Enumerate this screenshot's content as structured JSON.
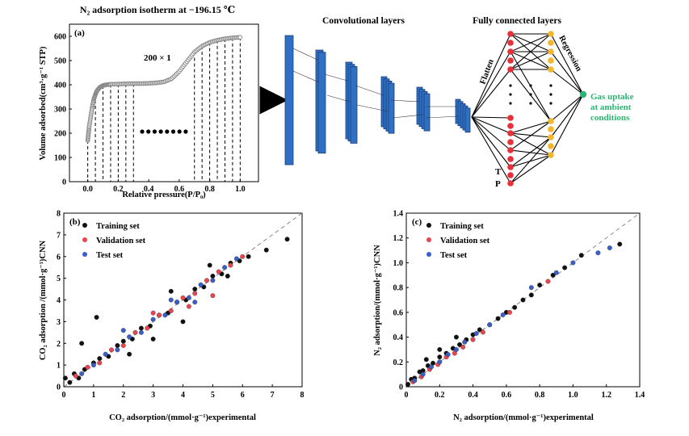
{
  "colors": {
    "training": "#111111",
    "validation": "#e8454f",
    "test": "#3a5fc8",
    "cnn_block": "#2f6fc4",
    "node_red": "#e8303a",
    "node_yellow": "#f2b631",
    "output_node": "#2bb673",
    "output_text": "#2bb673",
    "isotherm": "#8a8a8a",
    "diagonal": "#888888"
  },
  "chart_data": [
    {
      "id": "a",
      "type": "line",
      "panel_label": "(a)",
      "title": "N₂ adsorption isotherm at −196.15 ℃",
      "xlabel": "Relative pressure(P/P₀)",
      "ylabel": "Volume adsorbed(cm³·g⁻¹ STP)",
      "xlim": [
        -0.12,
        1.12
      ],
      "ylim": [
        0,
        650
      ],
      "xticks": [
        "0.0",
        "0.2",
        "0.4",
        "0.6",
        "0.8",
        "1.0"
      ],
      "yticks": [
        "0",
        "100",
        "200",
        "300",
        "400",
        "500",
        "600"
      ],
      "annotation": "200 × 1",
      "series": [
        {
          "x": [
            0.0,
            0.005,
            0.01,
            0.02,
            0.03,
            0.04,
            0.05,
            0.06,
            0.08,
            0.1,
            0.12,
            0.15,
            0.2,
            0.25,
            0.3,
            0.35,
            0.4,
            0.45,
            0.5,
            0.55,
            0.6,
            0.65,
            0.7,
            0.75,
            0.8,
            0.85,
            0.9,
            0.95,
            1.0
          ],
          "y": [
            170,
            200,
            230,
            270,
            310,
            340,
            360,
            375,
            390,
            397,
            400,
            402,
            403,
            404,
            405,
            405,
            406,
            408,
            412,
            425,
            455,
            495,
            535,
            560,
            575,
            584,
            590,
            594,
            596
          ]
        }
      ],
      "sample_lines_x": [
        0.0,
        0.05,
        0.1,
        0.15,
        0.2,
        0.25,
        0.3,
        0.7,
        0.75,
        0.8,
        0.85,
        0.9,
        0.95,
        1.0
      ]
    },
    {
      "id": "b",
      "type": "scatter",
      "panel_label": "(b)",
      "xlabel": "CO₂ adsorption/(mmol·g⁻¹)experimental",
      "ylabel": "CO₂ adsorption /(mmol·g⁻¹)CNN",
      "xlim": [
        0,
        8
      ],
      "ylim": [
        0,
        8
      ],
      "xticks": [
        "0",
        "1",
        "2",
        "3",
        "4",
        "5",
        "6",
        "7",
        "8"
      ],
      "yticks": [
        "0",
        "1",
        "2",
        "3",
        "4",
        "5",
        "6",
        "7",
        "8"
      ],
      "legend_position": "top-left",
      "series": [
        {
          "name": "Training set",
          "color_key": "training",
          "x": [
            0.05,
            0.2,
            0.35,
            0.5,
            0.7,
            1.0,
            1.2,
            1.5,
            1.8,
            2.0,
            2.3,
            2.6,
            2.9,
            3.2,
            3.5,
            3.8,
            4.1,
            4.4,
            4.7,
            5.0,
            5.3,
            5.6,
            5.9,
            6.2,
            6.8,
            7.5,
            0.6,
            1.1,
            3.0,
            4.0,
            2.2,
            3.6,
            4.9,
            5.5
          ],
          "y": [
            0.4,
            0.2,
            0.6,
            0.4,
            0.8,
            1.1,
            1.3,
            1.4,
            1.9,
            2.1,
            2.2,
            2.7,
            2.8,
            3.3,
            3.4,
            3.9,
            4.0,
            4.5,
            4.6,
            5.1,
            5.2,
            5.7,
            5.8,
            6.0,
            6.3,
            6.8,
            2.0,
            3.2,
            2.2,
            3.0,
            1.5,
            4.4,
            5.6,
            5.1
          ]
        },
        {
          "name": "Validation set",
          "color_key": "validation",
          "x": [
            0.4,
            0.8,
            1.2,
            1.6,
            2.0,
            2.4,
            2.8,
            3.2,
            3.6,
            4.0,
            4.4,
            4.8,
            5.2,
            5.6,
            6.0,
            3.0,
            4.2,
            5.0
          ],
          "y": [
            0.5,
            0.9,
            1.1,
            1.7,
            1.9,
            2.5,
            2.7,
            3.3,
            3.5,
            4.1,
            4.3,
            4.9,
            5.3,
            5.6,
            6.0,
            3.4,
            3.7,
            4.2
          ]
        },
        {
          "name": "Test set",
          "color_key": "test",
          "x": [
            0.6,
            1.0,
            1.4,
            1.8,
            2.2,
            2.6,
            3.0,
            3.4,
            3.8,
            4.2,
            4.6,
            5.0,
            5.4,
            5.8,
            2.0,
            3.6,
            4.4
          ],
          "y": [
            0.6,
            1.0,
            1.5,
            1.7,
            2.3,
            2.5,
            3.1,
            3.3,
            3.9,
            4.1,
            4.7,
            4.9,
            5.5,
            5.9,
            2.6,
            4.0,
            3.9
          ]
        }
      ]
    },
    {
      "id": "c",
      "type": "scatter",
      "panel_label": "(c)",
      "xlabel": "N₂ adsorption/(mmol·g⁻¹)experimental",
      "ylabel": "N₂ adsorption/(mmol·g⁻¹)CNN",
      "xlim": [
        0,
        1.4
      ],
      "ylim": [
        0,
        1.4
      ],
      "xticks": [
        "0",
        "0.2",
        "0.4",
        "0.6",
        "0.8",
        "1.0",
        "1.2",
        "1.4"
      ],
      "yticks": [
        "0",
        "0.2",
        "0.4",
        "0.6",
        "0.8",
        "1.0",
        "1.2",
        "1.4"
      ],
      "legend_position": "top-left",
      "series": [
        {
          "name": "Training set",
          "color_key": "training",
          "x": [
            0.01,
            0.03,
            0.05,
            0.08,
            0.1,
            0.13,
            0.16,
            0.2,
            0.24,
            0.28,
            0.32,
            0.36,
            0.4,
            0.44,
            0.5,
            0.55,
            0.6,
            0.65,
            0.7,
            0.75,
            0.8,
            0.88,
            0.95,
            1.05,
            1.28,
            0.12,
            0.2,
            0.3
          ],
          "y": [
            0.02,
            0.06,
            0.07,
            0.12,
            0.13,
            0.17,
            0.19,
            0.24,
            0.27,
            0.31,
            0.34,
            0.38,
            0.42,
            0.46,
            0.5,
            0.55,
            0.6,
            0.64,
            0.7,
            0.74,
            0.82,
            0.9,
            0.96,
            1.06,
            1.15,
            0.22,
            0.3,
            0.4
          ]
        },
        {
          "name": "Validation set",
          "color_key": "validation",
          "x": [
            0.04,
            0.09,
            0.14,
            0.19,
            0.24,
            0.29,
            0.34,
            0.4,
            0.46,
            0.62,
            0.85
          ],
          "y": [
            0.04,
            0.08,
            0.14,
            0.18,
            0.24,
            0.27,
            0.32,
            0.38,
            0.44,
            0.6,
            0.85
          ]
        },
        {
          "name": "Test set",
          "color_key": "test",
          "x": [
            0.05,
            0.1,
            0.15,
            0.2,
            0.25,
            0.3,
            0.35,
            0.42,
            0.5,
            0.58,
            0.75,
            0.9,
            1.0,
            1.15,
            1.22
          ],
          "y": [
            0.05,
            0.1,
            0.16,
            0.2,
            0.26,
            0.3,
            0.36,
            0.43,
            0.5,
            0.58,
            0.8,
            0.92,
            1.0,
            1.08,
            1.12
          ]
        }
      ]
    }
  ],
  "diagram": {
    "conv_title": "Convolutional layers",
    "fc_title": "Fully connected layers",
    "flatten_label": "Flatten",
    "regression_label": "Regression",
    "inputs": [
      "T",
      "P"
    ],
    "output_lines": [
      "Gas uptake",
      "at ambient",
      "conditions"
    ]
  }
}
